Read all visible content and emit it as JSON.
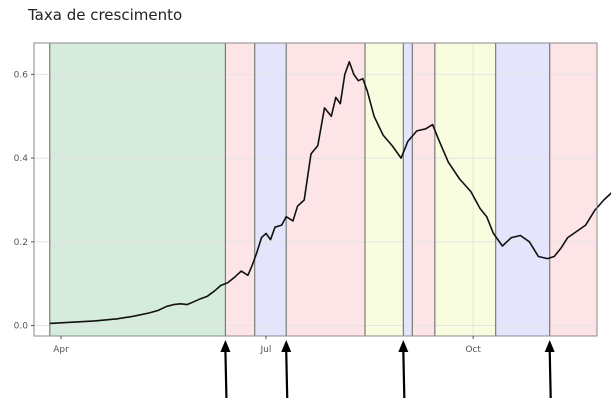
{
  "chart_data": {
    "type": "line",
    "title": "Taxa de crescimento",
    "xlabel": "",
    "ylabel": "",
    "xlim": [
      "2021-03-20",
      "2021-11-25"
    ],
    "ylim": [
      -0.025,
      0.675
    ],
    "x_ticks": [
      "2021-04-01",
      "2021-07-01",
      "2021-10-01"
    ],
    "x_tick_labels": [
      "Apr",
      "Jul",
      "Oct"
    ],
    "y_ticks": [
      0.0,
      0.2,
      0.4,
      0.6
    ],
    "y_tick_labels": [
      "0.0",
      "0.2",
      "0.4",
      "0.6"
    ],
    "grid": true,
    "phases": [
      {
        "start": "2021-03-27",
        "end": "2021-06-13",
        "color": "#d5ecdc"
      },
      {
        "start": "2021-06-13",
        "end": "2021-06-26",
        "color": "#fde4e6"
      },
      {
        "start": "2021-06-26",
        "end": "2021-07-10",
        "color": "#e4e4fd"
      },
      {
        "start": "2021-07-10",
        "end": "2021-08-14",
        "color": "#fde4e6"
      },
      {
        "start": "2021-08-14",
        "end": "2021-08-31",
        "color": "#f8fde0"
      },
      {
        "start": "2021-08-31",
        "end": "2021-09-04",
        "color": "#e4e4fd"
      },
      {
        "start": "2021-09-04",
        "end": "2021-09-14",
        "color": "#fde4e6"
      },
      {
        "start": "2021-09-14",
        "end": "2021-10-11",
        "color": "#f8fde0"
      },
      {
        "start": "2021-10-11",
        "end": "2021-11-04",
        "color": "#e4e4fd"
      },
      {
        "start": "2021-11-04",
        "end": "2021-12-03",
        "color": "#fde4e6"
      }
    ],
    "arrows_at": [
      "2021-06-13",
      "2021-07-10",
      "2021-08-31",
      "2021-11-04"
    ],
    "series": [
      {
        "line_color": "#111111",
        "points": [
          [
            "2021-03-27",
            0.005
          ],
          [
            "2021-04-06",
            0.008
          ],
          [
            "2021-04-16",
            0.011
          ],
          [
            "2021-04-26",
            0.016
          ],
          [
            "2021-05-03",
            0.022
          ],
          [
            "2021-05-10",
            0.03
          ],
          [
            "2021-05-14",
            0.036
          ],
          [
            "2021-05-18",
            0.046
          ],
          [
            "2021-05-21",
            0.05
          ],
          [
            "2021-05-24",
            0.052
          ],
          [
            "2021-05-27",
            0.05
          ],
          [
            "2021-05-30",
            0.057
          ],
          [
            "2021-06-02",
            0.064
          ],
          [
            "2021-06-05",
            0.07
          ],
          [
            "2021-06-08",
            0.082
          ],
          [
            "2021-06-11",
            0.096
          ],
          [
            "2021-06-14",
            0.102
          ],
          [
            "2021-06-17",
            0.115
          ],
          [
            "2021-06-20",
            0.13
          ],
          [
            "2021-06-23",
            0.12
          ],
          [
            "2021-06-25",
            0.145
          ],
          [
            "2021-06-27",
            0.175
          ],
          [
            "2021-06-29",
            0.21
          ],
          [
            "2021-07-01",
            0.22
          ],
          [
            "2021-07-03",
            0.205
          ],
          [
            "2021-07-05",
            0.235
          ],
          [
            "2021-07-08",
            0.24
          ],
          [
            "2021-07-10",
            0.26
          ],
          [
            "2021-07-13",
            0.25
          ],
          [
            "2021-07-15",
            0.285
          ],
          [
            "2021-07-18",
            0.3
          ],
          [
            "2021-07-21",
            0.41
          ],
          [
            "2021-07-24",
            0.43
          ],
          [
            "2021-07-27",
            0.52
          ],
          [
            "2021-07-30",
            0.5
          ],
          [
            "2021-08-01",
            0.545
          ],
          [
            "2021-08-03",
            0.53
          ],
          [
            "2021-08-05",
            0.6
          ],
          [
            "2021-08-07",
            0.63
          ],
          [
            "2021-08-09",
            0.6
          ],
          [
            "2021-08-11",
            0.585
          ],
          [
            "2021-08-13",
            0.59
          ],
          [
            "2021-08-15",
            0.56
          ],
          [
            "2021-08-18",
            0.5
          ],
          [
            "2021-08-22",
            0.455
          ],
          [
            "2021-08-26",
            0.43
          ],
          [
            "2021-08-30",
            0.4
          ],
          [
            "2021-09-02",
            0.44
          ],
          [
            "2021-09-06",
            0.465
          ],
          [
            "2021-09-10",
            0.47
          ],
          [
            "2021-09-13",
            0.48
          ],
          [
            "2021-09-16",
            0.44
          ],
          [
            "2021-09-20",
            0.39
          ],
          [
            "2021-09-25",
            0.35
          ],
          [
            "2021-09-30",
            0.32
          ],
          [
            "2021-10-04",
            0.28
          ],
          [
            "2021-10-07",
            0.26
          ],
          [
            "2021-10-10",
            0.22
          ],
          [
            "2021-10-14",
            0.19
          ],
          [
            "2021-10-18",
            0.21
          ],
          [
            "2021-10-22",
            0.215
          ],
          [
            "2021-10-26",
            0.2
          ],
          [
            "2021-10-30",
            0.165
          ],
          [
            "2021-11-03",
            0.16
          ],
          [
            "2021-11-06",
            0.165
          ],
          [
            "2021-11-09",
            0.185
          ],
          [
            "2021-11-12",
            0.21
          ],
          [
            "2021-11-16",
            0.225
          ],
          [
            "2021-11-20",
            0.24
          ],
          [
            "2021-11-24",
            0.275
          ],
          [
            "2021-11-28",
            0.3
          ],
          [
            "2021-12-03",
            0.325
          ]
        ]
      }
    ]
  }
}
